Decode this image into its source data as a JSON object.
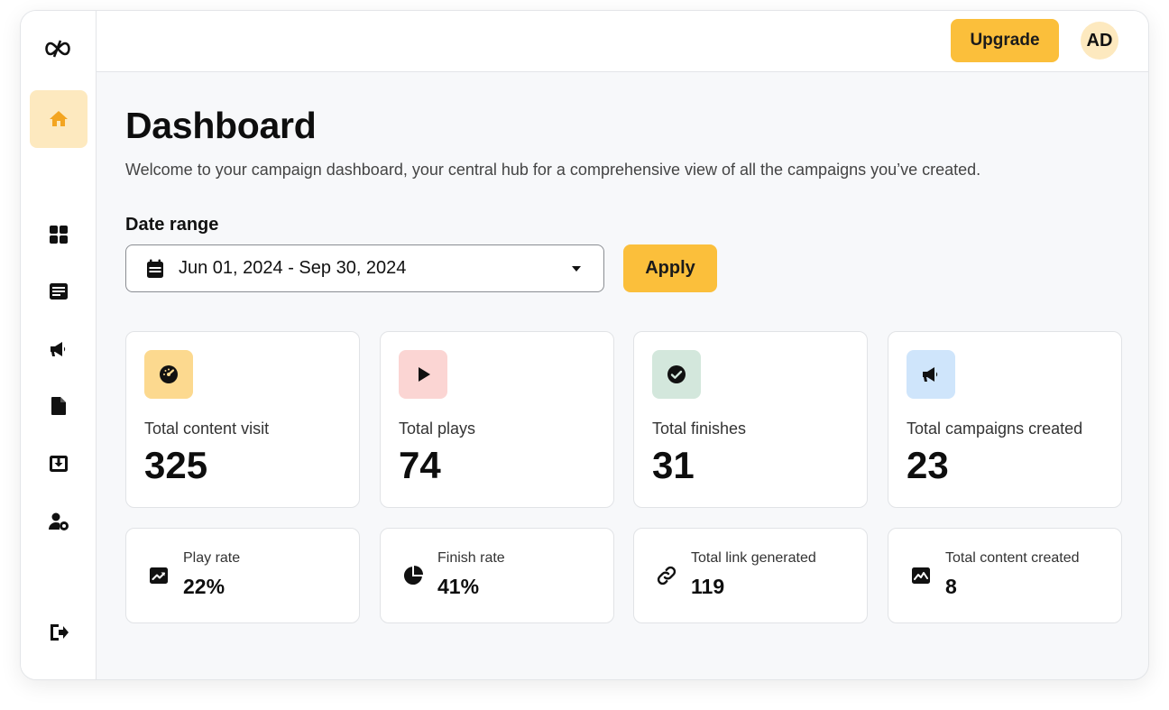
{
  "header": {
    "upgrade_label": "Upgrade",
    "avatar_initials": "AD"
  },
  "sidebar": {
    "items": [
      {
        "name": "home",
        "icon": "home-icon",
        "active": true
      },
      {
        "name": "dashboard",
        "icon": "grid-icon"
      },
      {
        "name": "content",
        "icon": "article-icon"
      },
      {
        "name": "campaigns",
        "icon": "megaphone-icon"
      },
      {
        "name": "documents",
        "icon": "file-icon"
      },
      {
        "name": "downloads",
        "icon": "download-box-icon"
      },
      {
        "name": "user-settings",
        "icon": "user-gear-icon"
      },
      {
        "name": "logout",
        "icon": "logout-icon"
      }
    ]
  },
  "page": {
    "title": "Dashboard",
    "subtitle": "Welcome to your campaign dashboard, your central hub for a comprehensive view of all the campaigns you’ve created."
  },
  "filter": {
    "label": "Date range",
    "value": "Jun 01, 2024 - Sep 30, 2024",
    "apply_label": "Apply"
  },
  "stats": [
    {
      "label": "Total content visit",
      "value": "325",
      "icon": "speedometer-icon",
      "color": "#fcd98f"
    },
    {
      "label": "Total plays",
      "value": "74",
      "icon": "play-icon",
      "color": "#fbd5d3"
    },
    {
      "label": "Total finishes",
      "value": "31",
      "icon": "check-circle-icon",
      "color": "#d3e7dc"
    },
    {
      "label": "Total campaigns created",
      "value": "23",
      "icon": "megaphone-icon",
      "color": "#cfe5fb"
    }
  ],
  "metrics": [
    {
      "label": "Play rate",
      "value": "22%",
      "icon": "trending-up-icon"
    },
    {
      "label": "Finish rate",
      "value": "41%",
      "icon": "pie-chart-icon"
    },
    {
      "label": "Total link generated",
      "value": "119",
      "icon": "link-icon"
    },
    {
      "label": "Total content created",
      "value": "8",
      "icon": "image-chart-icon"
    }
  ],
  "colors": {
    "accent": "#fbbf3b",
    "accent_soft": "#fde9bf",
    "background": "#f7f8fa"
  }
}
